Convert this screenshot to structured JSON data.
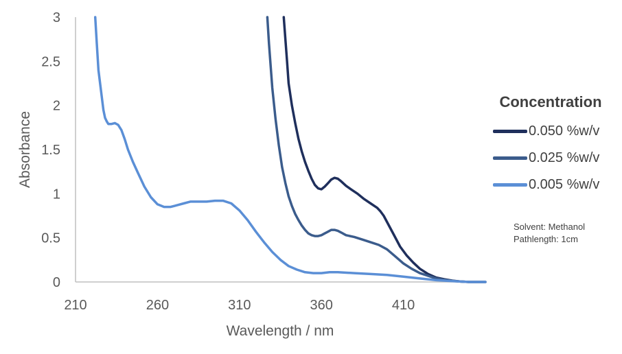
{
  "chart_data": {
    "type": "line",
    "xlabel": "Wavelength / nm",
    "ylabel": "Absorbance",
    "xlim": [
      210,
      460
    ],
    "ylim": [
      0,
      3
    ],
    "xticks": [
      210,
      260,
      310,
      360,
      410
    ],
    "yticks": [
      0,
      0.5,
      1,
      1.5,
      2,
      2.5,
      3
    ],
    "ytick_labels": [
      "0",
      "0.5",
      "1",
      "1.5",
      "2",
      "2.5",
      "3"
    ],
    "legend": {
      "title": "Concentration",
      "position": "right"
    },
    "annotations": [
      "Solvent: Methanol",
      "Pathlength: 1cm"
    ],
    "series": [
      {
        "name": "0.050 %w/v",
        "color": "#1f2f5c",
        "x": [
          337,
          338,
          339,
          340,
          342,
          344,
          346,
          348,
          350,
          352,
          354,
          356,
          358,
          360,
          362,
          364,
          366,
          368,
          370,
          372,
          375,
          378,
          382,
          386,
          390,
          394,
          396,
          398,
          400,
          404,
          408,
          412,
          416,
          420,
          425,
          430,
          435,
          440,
          445,
          450,
          455,
          460
        ],
        "y": [
          3.0,
          2.75,
          2.5,
          2.25,
          2.0,
          1.8,
          1.62,
          1.48,
          1.36,
          1.26,
          1.17,
          1.1,
          1.06,
          1.05,
          1.08,
          1.12,
          1.16,
          1.18,
          1.17,
          1.14,
          1.09,
          1.05,
          1.0,
          0.94,
          0.89,
          0.84,
          0.8,
          0.75,
          0.68,
          0.54,
          0.4,
          0.3,
          0.22,
          0.15,
          0.09,
          0.05,
          0.03,
          0.015,
          0.005,
          0.0,
          0.0,
          0.0
        ]
      },
      {
        "name": "0.025 %w/v",
        "color": "#3b5c8c",
        "x": [
          327,
          328,
          329,
          330,
          332,
          334,
          336,
          338,
          340,
          342,
          344,
          346,
          348,
          350,
          352,
          354,
          356,
          358,
          360,
          362,
          364,
          366,
          368,
          370,
          372,
          375,
          380,
          385,
          390,
          395,
          400,
          405,
          410,
          415,
          420,
          425,
          430,
          435,
          440,
          445,
          450,
          455,
          460
        ],
        "y": [
          3.0,
          2.7,
          2.45,
          2.2,
          1.85,
          1.55,
          1.3,
          1.12,
          0.97,
          0.86,
          0.77,
          0.7,
          0.64,
          0.59,
          0.55,
          0.53,
          0.52,
          0.52,
          0.53,
          0.55,
          0.57,
          0.59,
          0.59,
          0.58,
          0.56,
          0.53,
          0.51,
          0.48,
          0.45,
          0.42,
          0.37,
          0.29,
          0.21,
          0.15,
          0.1,
          0.07,
          0.04,
          0.025,
          0.012,
          0.005,
          0.0,
          0.0,
          0.0
        ]
      },
      {
        "name": "0.005 %w/v",
        "color": "#5b8fd6",
        "x": [
          222,
          223,
          224,
          225,
          226,
          227,
          228,
          229,
          230,
          232,
          234,
          236,
          238,
          240,
          242,
          245,
          248,
          252,
          256,
          260,
          264,
          268,
          272,
          276,
          280,
          285,
          290,
          295,
          300,
          305,
          310,
          315,
          320,
          325,
          330,
          335,
          340,
          345,
          350,
          355,
          360,
          365,
          370,
          380,
          390,
          400,
          410,
          420,
          430,
          440,
          450,
          460
        ],
        "y": [
          3.0,
          2.7,
          2.4,
          2.25,
          2.1,
          1.95,
          1.86,
          1.82,
          1.79,
          1.79,
          1.8,
          1.78,
          1.72,
          1.62,
          1.5,
          1.36,
          1.24,
          1.08,
          0.96,
          0.88,
          0.85,
          0.85,
          0.87,
          0.89,
          0.91,
          0.91,
          0.91,
          0.92,
          0.92,
          0.89,
          0.81,
          0.7,
          0.57,
          0.45,
          0.34,
          0.25,
          0.18,
          0.14,
          0.11,
          0.1,
          0.1,
          0.11,
          0.11,
          0.1,
          0.09,
          0.08,
          0.06,
          0.04,
          0.02,
          0.01,
          0.0,
          0.0
        ]
      }
    ]
  }
}
